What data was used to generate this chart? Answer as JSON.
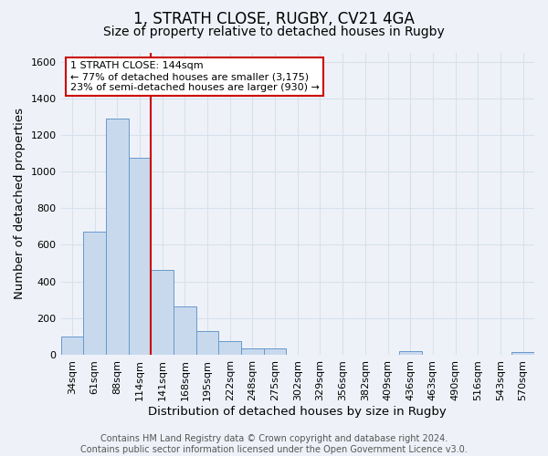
{
  "title": "1, STRATH CLOSE, RUGBY, CV21 4GA",
  "subtitle": "Size of property relative to detached houses in Rugby",
  "xlabel": "Distribution of detached houses by size in Rugby",
  "ylabel": "Number of detached properties",
  "bar_labels": [
    "34sqm",
    "61sqm",
    "88sqm",
    "114sqm",
    "141sqm",
    "168sqm",
    "195sqm",
    "222sqm",
    "248sqm",
    "275sqm",
    "302sqm",
    "329sqm",
    "356sqm",
    "382sqm",
    "409sqm",
    "436sqm",
    "463sqm",
    "490sqm",
    "516sqm",
    "543sqm",
    "570sqm"
  ],
  "bar_values": [
    100,
    670,
    1290,
    1075,
    465,
    265,
    130,
    75,
    35,
    35,
    0,
    0,
    0,
    0,
    0,
    20,
    0,
    0,
    0,
    0,
    15
  ],
  "bar_color": "#c9d9ed",
  "bar_edge_color": "#6699cc",
  "ylim": [
    0,
    1650
  ],
  "yticks": [
    0,
    200,
    400,
    600,
    800,
    1000,
    1200,
    1400,
    1600
  ],
  "vline_pos": 3.5,
  "annotation_line1": "1 STRATH CLOSE: 144sqm",
  "annotation_line2": "← 77% of detached houses are smaller (3,175)",
  "annotation_line3": "23% of semi-detached houses are larger (930) →",
  "annotation_box_color": "#ffffff",
  "annotation_box_edge_color": "#cc0000",
  "vline_color": "#cc0000",
  "footer1": "Contains HM Land Registry data © Crown copyright and database right 2024.",
  "footer2": "Contains public sector information licensed under the Open Government Licence v3.0.",
  "background_color": "#eef2f8",
  "grid_color": "#d8e0ec",
  "title_fontsize": 12,
  "subtitle_fontsize": 10,
  "axis_label_fontsize": 9.5,
  "tick_fontsize": 8,
  "footer_fontsize": 7,
  "annot_fontsize": 8
}
